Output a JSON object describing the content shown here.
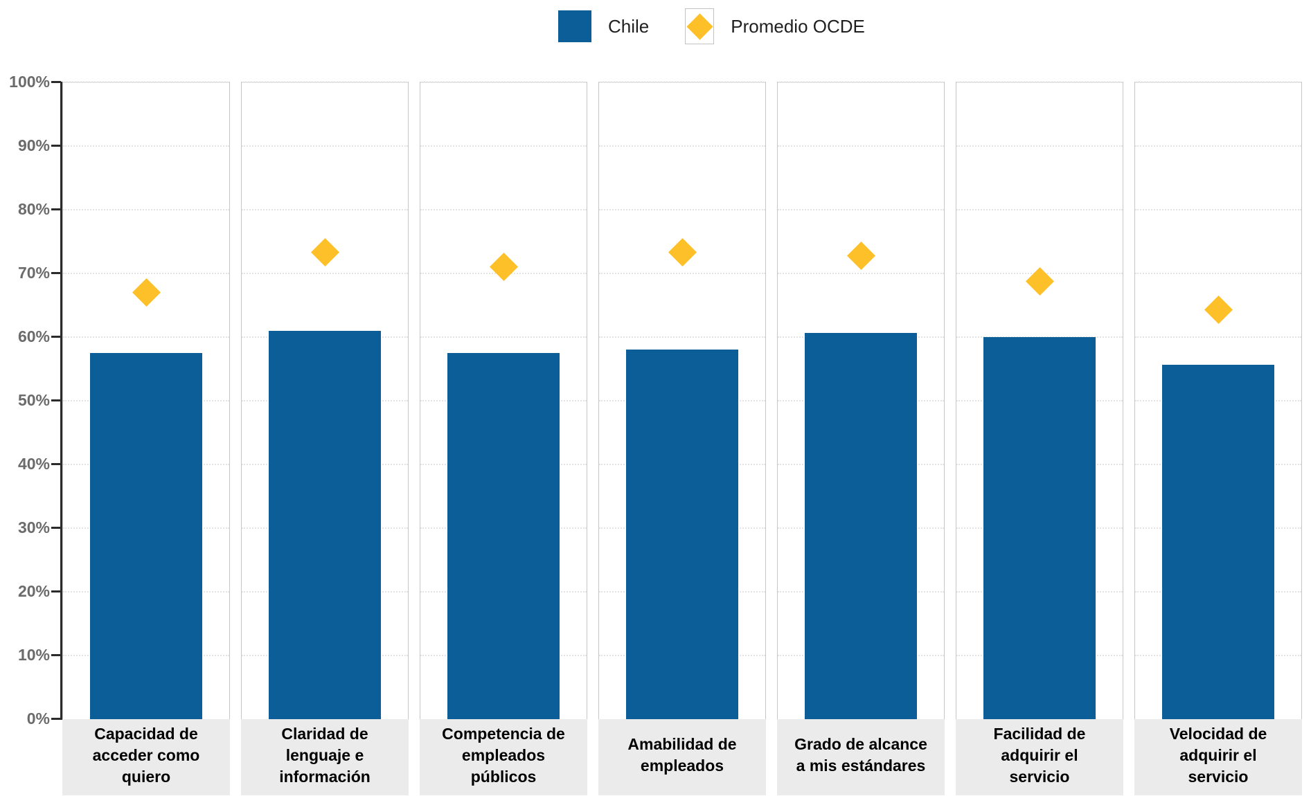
{
  "legend": {
    "chile_label": "Chile",
    "ocde_label": "Promedio OCDE"
  },
  "colors": {
    "chile_bar": "#0b5e98",
    "ocde_diamond": "#fdc029",
    "panel_border": "#c6c6c6",
    "gridline": "#e3e3e3",
    "axis": "#2b2b2b",
    "tick_text": "#6b6b6b",
    "category_box": "#ebebeb"
  },
  "chart_data": {
    "type": "bar",
    "title": "",
    "xlabel": "",
    "ylabel": "",
    "ylim": [
      0,
      100
    ],
    "y_tick_labels": [
      "0%",
      "10%",
      "20%",
      "30%",
      "40%",
      "50%",
      "60%",
      "70%",
      "80%",
      "90%",
      "100%"
    ],
    "grid": "horizontal dotted, per-panel small multiples",
    "legend_position": "top-center",
    "categories": [
      [
        "Capacidad de",
        "acceder como",
        "quiero"
      ],
      [
        "Claridad de",
        "lenguaje e",
        "información"
      ],
      [
        "Competencia de",
        "empleados",
        "públicos"
      ],
      [
        "Amabilidad de",
        "empleados"
      ],
      [
        "Grado de alcance",
        "a mis estándares"
      ],
      [
        "Facilidad de",
        "adquirir el",
        "servicio"
      ],
      [
        "Velocidad de",
        "adquirir el",
        "servicio"
      ]
    ],
    "series": [
      {
        "name": "Chile",
        "type": "bar",
        "values": [
          57.5,
          61.0,
          57.5,
          58.0,
          60.7,
          60.0,
          55.7
        ]
      },
      {
        "name": "Promedio OCDE",
        "type": "scatter-diamond",
        "values": [
          67.0,
          73.3,
          71.0,
          73.3,
          72.8,
          68.7,
          64.3
        ]
      }
    ]
  }
}
